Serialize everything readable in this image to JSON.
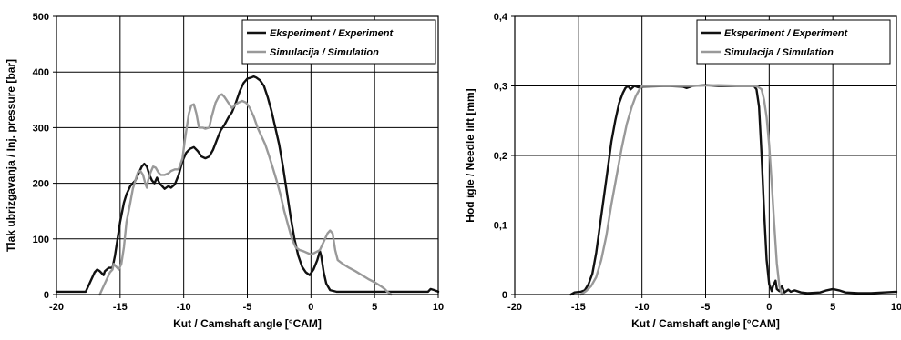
{
  "colors": {
    "experiment": "#111111",
    "simulation": "#999999",
    "grid": "#000000",
    "background": "#ffffff"
  },
  "chart_data": [
    {
      "type": "line",
      "xlabel": "Kut / Camshaft angle [°CAM]",
      "ylabel": "Tlak ubrizgavanja / Inj. pressure [bar]",
      "xlim": [
        -20,
        10
      ],
      "ylim": [
        0,
        500
      ],
      "xticks": [
        -20,
        -15,
        -10,
        -5,
        0,
        5,
        10
      ],
      "yticks": [
        0,
        100,
        200,
        300,
        400,
        500
      ],
      "xtick_labels": [
        "-20",
        "-15",
        "-10",
        "-5",
        "0",
        "5",
        "10"
      ],
      "ytick_labels": [
        "0",
        "100",
        "200",
        "300",
        "400",
        "500"
      ],
      "grid": true,
      "legend_position": "top-right",
      "series": [
        {
          "name": "Eksperiment / Experiment",
          "color_key": "experiment",
          "points": [
            [
              -20,
              5
            ],
            [
              -17.7,
              5
            ],
            [
              -17.4,
              20
            ],
            [
              -17,
              40
            ],
            [
              -16.8,
              45
            ],
            [
              -16.6,
              42
            ],
            [
              -16.3,
              35
            ],
            [
              -16.2,
              42
            ],
            [
              -15.9,
              48
            ],
            [
              -15.6,
              48
            ],
            [
              -15.4,
              70
            ],
            [
              -15.2,
              100
            ],
            [
              -15,
              130
            ],
            [
              -14.7,
              165
            ],
            [
              -14.5,
              180
            ],
            [
              -14.2,
              195
            ],
            [
              -14,
              200
            ],
            [
              -13.8,
              205
            ],
            [
              -13.6,
              215
            ],
            [
              -13.3,
              230
            ],
            [
              -13.1,
              235
            ],
            [
              -12.9,
              230
            ],
            [
              -12.7,
              215
            ],
            [
              -12.5,
              205
            ],
            [
              -12.3,
              200
            ],
            [
              -12.1,
              210
            ],
            [
              -11.9,
              200
            ],
            [
              -11.7,
              195
            ],
            [
              -11.5,
              190
            ],
            [
              -11.2,
              195
            ],
            [
              -11,
              192
            ],
            [
              -10.7,
              198
            ],
            [
              -10.4,
              215
            ],
            [
              -10.1,
              240
            ],
            [
              -9.8,
              255
            ],
            [
              -9.5,
              262
            ],
            [
              -9.2,
              265
            ],
            [
              -8.9,
              258
            ],
            [
              -8.6,
              248
            ],
            [
              -8.3,
              245
            ],
            [
              -8,
              248
            ],
            [
              -7.7,
              260
            ],
            [
              -7.4,
              278
            ],
            [
              -7.1,
              295
            ],
            [
              -6.8,
              305
            ],
            [
              -6.5,
              318
            ],
            [
              -6.2,
              328
            ],
            [
              -5.9,
              345
            ],
            [
              -5.6,
              365
            ],
            [
              -5.3,
              380
            ],
            [
              -5,
              388
            ],
            [
              -4.7,
              390
            ],
            [
              -4.5,
              392
            ],
            [
              -4.3,
              390
            ],
            [
              -4,
              385
            ],
            [
              -3.7,
              375
            ],
            [
              -3.4,
              355
            ],
            [
              -3.1,
              330
            ],
            [
              -2.8,
              300
            ],
            [
              -2.5,
              270
            ],
            [
              -2.2,
              230
            ],
            [
              -1.9,
              185
            ],
            [
              -1.6,
              140
            ],
            [
              -1.3,
              100
            ],
            [
              -1,
              70
            ],
            [
              -0.7,
              50
            ],
            [
              -0.4,
              40
            ],
            [
              -0.1,
              35
            ],
            [
              0.2,
              45
            ],
            [
              0.5,
              62
            ],
            [
              0.7,
              78
            ],
            [
              0.8,
              70
            ],
            [
              1,
              40
            ],
            [
              1.2,
              20
            ],
            [
              1.5,
              8
            ],
            [
              2,
              5
            ],
            [
              9.2,
              5
            ],
            [
              9.4,
              10
            ],
            [
              9.7,
              8
            ],
            [
              10,
              5
            ]
          ]
        },
        {
          "name": "Simulacija / Simulation",
          "color_key": "simulation",
          "points": [
            [
              -16.6,
              0
            ],
            [
              -16.3,
              15
            ],
            [
              -16,
              30
            ],
            [
              -15.8,
              40
            ],
            [
              -15.6,
              45
            ],
            [
              -15.5,
              55
            ],
            [
              -15.3,
              50
            ],
            [
              -15.1,
              45
            ],
            [
              -14.9,
              55
            ],
            [
              -14.7,
              85
            ],
            [
              -14.5,
              130
            ],
            [
              -14.2,
              165
            ],
            [
              -14,
              190
            ],
            [
              -13.8,
              205
            ],
            [
              -13.6,
              220
            ],
            [
              -13.4,
              222
            ],
            [
              -13.2,
              215
            ],
            [
              -13,
              198
            ],
            [
              -12.9,
              192
            ],
            [
              -12.8,
              205
            ],
            [
              -12.6,
              220
            ],
            [
              -12.4,
              230
            ],
            [
              -12.2,
              228
            ],
            [
              -12,
              220
            ],
            [
              -11.8,
              215
            ],
            [
              -11.5,
              215
            ],
            [
              -11.2,
              218
            ],
            [
              -11,
              222
            ],
            [
              -10.7,
              225
            ],
            [
              -10.4,
              225
            ],
            [
              -10.1,
              245
            ],
            [
              -9.9,
              280
            ],
            [
              -9.6,
              325
            ],
            [
              -9.4,
              340
            ],
            [
              -9.2,
              342
            ],
            [
              -9,
              325
            ],
            [
              -8.8,
              300
            ],
            [
              -8.5,
              300
            ],
            [
              -8.3,
              298
            ],
            [
              -8,
              300
            ],
            [
              -7.8,
              320
            ],
            [
              -7.5,
              345
            ],
            [
              -7.2,
              358
            ],
            [
              -7,
              360
            ],
            [
              -6.8,
              355
            ],
            [
              -6.5,
              345
            ],
            [
              -6.2,
              335
            ],
            [
              -6,
              340
            ],
            [
              -5.7,
              345
            ],
            [
              -5.4,
              348
            ],
            [
              -5.1,
              345
            ],
            [
              -4.8,
              335
            ],
            [
              -4.5,
              320
            ],
            [
              -4.2,
              300
            ],
            [
              -3.9,
              285
            ],
            [
              -3.6,
              270
            ],
            [
              -3.3,
              250
            ],
            [
              -3,
              228
            ],
            [
              -2.7,
              205
            ],
            [
              -2.4,
              180
            ],
            [
              -2.1,
              150
            ],
            [
              -1.8,
              125
            ],
            [
              -1.5,
              100
            ],
            [
              -1.2,
              85
            ],
            [
              -0.9,
              80
            ],
            [
              -0.6,
              78
            ],
            [
              -0.3,
              75
            ],
            [
              0,
              72
            ],
            [
              0.3,
              75
            ],
            [
              0.7,
              80
            ],
            [
              1,
              95
            ],
            [
              1.3,
              110
            ],
            [
              1.5,
              115
            ],
            [
              1.7,
              110
            ],
            [
              1.9,
              80
            ],
            [
              2.1,
              62
            ],
            [
              2.5,
              55
            ],
            [
              3,
              48
            ],
            [
              3.5,
              42
            ],
            [
              4,
              35
            ],
            [
              4.5,
              28
            ],
            [
              5,
              22
            ],
            [
              5.5,
              15
            ],
            [
              5.8,
              10
            ],
            [
              6,
              5
            ],
            [
              6.3,
              0
            ]
          ]
        }
      ]
    },
    {
      "type": "line",
      "xlabel": "Kut / Camshaft angle [°CAM]",
      "ylabel": "Hod igle / Needle lift [mm]",
      "xlim": [
        -20,
        10
      ],
      "ylim": [
        0,
        0.4
      ],
      "xticks": [
        -20,
        -15,
        -10,
        -5,
        0,
        5,
        10
      ],
      "yticks": [
        0,
        0.1,
        0.2,
        0.3,
        0.4
      ],
      "xtick_labels": [
        "-20",
        "-15",
        "-10",
        "-5",
        "0",
        "5",
        "10"
      ],
      "ytick_labels": [
        "0",
        "0,1",
        "0,2",
        "0,3",
        "0,4"
      ],
      "grid": true,
      "legend_position": "top-right",
      "series": [
        {
          "name": "Eksperiment / Experiment",
          "color_key": "experiment",
          "points": [
            [
              -15.6,
              0
            ],
            [
              -15.3,
              0.003
            ],
            [
              -14.8,
              0.004
            ],
            [
              -14.5,
              0.006
            ],
            [
              -14.2,
              0.015
            ],
            [
              -13.9,
              0.03
            ],
            [
              -13.6,
              0.06
            ],
            [
              -13.3,
              0.1
            ],
            [
              -13,
              0.14
            ],
            [
              -12.7,
              0.18
            ],
            [
              -12.4,
              0.22
            ],
            [
              -12.1,
              0.25
            ],
            [
              -11.8,
              0.275
            ],
            [
              -11.5,
              0.29
            ],
            [
              -11.3,
              0.297
            ],
            [
              -11.1,
              0.3
            ],
            [
              -10.9,
              0.295
            ],
            [
              -10.6,
              0.3
            ],
            [
              -10.3,
              0.298
            ],
            [
              -10,
              0.299
            ],
            [
              -8,
              0.3
            ],
            [
              -6.8,
              0.299
            ],
            [
              -6.5,
              0.297
            ],
            [
              -6,
              0.3
            ],
            [
              -5,
              0.301
            ],
            [
              -4,
              0.3
            ],
            [
              -3,
              0.3
            ],
            [
              -2,
              0.3
            ],
            [
              -1.2,
              0.3
            ],
            [
              -1,
              0.295
            ],
            [
              -0.8,
              0.27
            ],
            [
              -0.6,
              0.2
            ],
            [
              -0.4,
              0.12
            ],
            [
              -0.2,
              0.05
            ],
            [
              0,
              0.015
            ],
            [
              0.2,
              0.005
            ],
            [
              0.3,
              0.012
            ],
            [
              0.5,
              0.02
            ],
            [
              0.6,
              0.008
            ],
            [
              0.8,
              0.005
            ],
            [
              1,
              0.012
            ],
            [
              1.2,
              0.003
            ],
            [
              1.5,
              0.007
            ],
            [
              1.7,
              0.004
            ],
            [
              2,
              0.006
            ],
            [
              2.5,
              0.003
            ],
            [
              3,
              0.002
            ],
            [
              4,
              0.003
            ],
            [
              4.5,
              0.006
            ],
            [
              5,
              0.008
            ],
            [
              5.5,
              0.006
            ],
            [
              6,
              0.003
            ],
            [
              7,
              0.002
            ],
            [
              8,
              0.002
            ],
            [
              9,
              0.003
            ],
            [
              10,
              0.004
            ]
          ]
        },
        {
          "name": "Simulacija / Simulation",
          "color_key": "simulation",
          "points": [
            [
              -14.8,
              0
            ],
            [
              -14.4,
              0.005
            ],
            [
              -14,
              0.012
            ],
            [
              -13.6,
              0.025
            ],
            [
              -13.2,
              0.05
            ],
            [
              -12.8,
              0.085
            ],
            [
              -12.4,
              0.13
            ],
            [
              -12,
              0.17
            ],
            [
              -11.6,
              0.21
            ],
            [
              -11.2,
              0.245
            ],
            [
              -10.8,
              0.27
            ],
            [
              -10.5,
              0.285
            ],
            [
              -10.2,
              0.295
            ],
            [
              -10,
              0.3
            ],
            [
              -8,
              0.3
            ],
            [
              -6,
              0.3
            ],
            [
              -4,
              0.301
            ],
            [
              -2,
              0.3
            ],
            [
              -1.2,
              0.3
            ],
            [
              -0.9,
              0.299
            ],
            [
              -0.6,
              0.295
            ],
            [
              -0.4,
              0.28
            ],
            [
              -0.2,
              0.255
            ],
            [
              0,
              0.215
            ],
            [
              0.2,
              0.16
            ],
            [
              0.4,
              0.1
            ],
            [
              0.6,
              0.045
            ],
            [
              0.8,
              0.012
            ],
            [
              1,
              0
            ]
          ]
        }
      ]
    }
  ]
}
